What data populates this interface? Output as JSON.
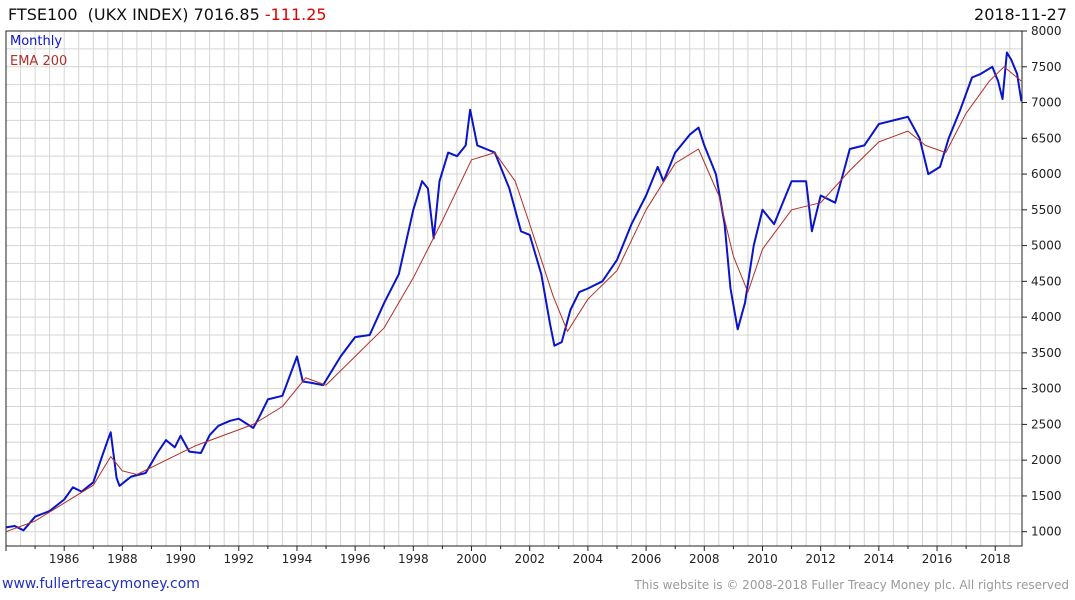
{
  "header": {
    "symbol": "FTSE100",
    "name": "(UKX INDEX)",
    "price": "7016.85",
    "change": "-111.25",
    "date": "2018-11-27"
  },
  "colors": {
    "monthly": "#0a14c8",
    "ema": "#b0302a",
    "grid": "#d4d4d4",
    "change_negative": "#e00000",
    "link": "#2030c0"
  },
  "footer": {
    "link": "www.fullertreacymoney.com",
    "copyright": "This website is © 2008-2018 Fuller Treacy Money plc. All rights reserved"
  },
  "chart_data": {
    "type": "line",
    "title": "FTSE100  (UKX INDEX)",
    "xlabel": "",
    "ylabel": "",
    "xlim": [
      1984.0,
      2018.92
    ],
    "ylim": [
      800,
      8000
    ],
    "y_axis_side": "right",
    "grid": true,
    "legend_position": "top-left",
    "x_ticks": [
      1986,
      1988,
      1990,
      1992,
      1994,
      1996,
      1998,
      2000,
      2002,
      2004,
      2006,
      2008,
      2010,
      2012,
      2014,
      2016,
      2018
    ],
    "y_ticks": [
      1000,
      1500,
      2000,
      2500,
      3000,
      3500,
      4000,
      4500,
      5000,
      5500,
      6000,
      6500,
      7000,
      7500,
      8000
    ],
    "series": [
      {
        "name": "Monthly",
        "color": "#0a14c8",
        "x": [
          1984.0,
          1984.3,
          1984.6,
          1985.0,
          1985.5,
          1986.0,
          1986.3,
          1986.6,
          1987.0,
          1987.3,
          1987.5,
          1987.6,
          1987.8,
          1987.9,
          1988.3,
          1988.8,
          1989.2,
          1989.5,
          1989.8,
          1990.0,
          1990.3,
          1990.7,
          1991.0,
          1991.3,
          1991.7,
          1992.0,
          1992.5,
          1992.7,
          1993.0,
          1993.5,
          1994.0,
          1994.2,
          1994.5,
          1994.9,
          1995.5,
          1996.0,
          1996.5,
          1997.0,
          1997.5,
          1998.0,
          1998.3,
          1998.5,
          1998.7,
          1998.9,
          1999.2,
          1999.5,
          1999.8,
          1999.95,
          2000.2,
          2000.5,
          2000.8,
          2001.0,
          2001.3,
          2001.7,
          2002.0,
          2002.4,
          2002.7,
          2002.85,
          2003.1,
          2003.4,
          2003.7,
          2004.0,
          2004.5,
          2005.0,
          2005.5,
          2006.0,
          2006.4,
          2006.6,
          2007.0,
          2007.5,
          2007.8,
          2008.0,
          2008.4,
          2008.7,
          2008.9,
          2009.15,
          2009.4,
          2009.7,
          2010.0,
          2010.4,
          2010.7,
          2011.0,
          2011.5,
          2011.7,
          2012.0,
          2012.5,
          2013.0,
          2013.5,
          2014.0,
          2014.5,
          2015.0,
          2015.4,
          2015.7,
          2016.1,
          2016.4,
          2016.8,
          2017.2,
          2017.5,
          2017.9,
          2018.1,
          2018.25,
          2018.4,
          2018.55,
          2018.75,
          2018.9
        ],
        "values": [
          1060,
          1080,
          1020,
          1210,
          1290,
          1450,
          1620,
          1560,
          1690,
          2050,
          2280,
          2390,
          1750,
          1640,
          1770,
          1820,
          2100,
          2280,
          2180,
          2340,
          2120,
          2100,
          2350,
          2480,
          2550,
          2580,
          2450,
          2600,
          2850,
          2900,
          3450,
          3100,
          3080,
          3050,
          3450,
          3720,
          3750,
          4200,
          4600,
          5500,
          5900,
          5800,
          5100,
          5900,
          6300,
          6250,
          6400,
          6900,
          6400,
          6350,
          6300,
          6100,
          5800,
          5200,
          5150,
          4600,
          3900,
          3600,
          3650,
          4100,
          4350,
          4400,
          4500,
          4800,
          5300,
          5700,
          6100,
          5900,
          6300,
          6550,
          6650,
          6400,
          6000,
          5300,
          4400,
          3830,
          4200,
          5000,
          5500,
          5300,
          5600,
          5900,
          5900,
          5200,
          5700,
          5600,
          6350,
          6400,
          6700,
          6750,
          6800,
          6500,
          6000,
          6100,
          6500,
          6900,
          7350,
          7400,
          7500,
          7300,
          7050,
          7700,
          7600,
          7400,
          7017
        ]
      },
      {
        "name": "EMA 200",
        "color": "#b0302a",
        "x": [
          1984.0,
          1985.0,
          1986.0,
          1987.0,
          1987.6,
          1988.0,
          1988.5,
          1989.5,
          1990.5,
          1991.5,
          1992.5,
          1993.5,
          1994.3,
          1995.0,
          1996.0,
          1997.0,
          1998.0,
          1999.0,
          2000.0,
          2000.8,
          2001.5,
          2002.0,
          2002.8,
          2003.3,
          2004.0,
          2005.0,
          2006.0,
          2007.0,
          2007.8,
          2008.5,
          2009.0,
          2009.5,
          2010.0,
          2011.0,
          2012.0,
          2013.0,
          2014.0,
          2015.0,
          2015.6,
          2016.3,
          2017.0,
          2017.8,
          2018.3,
          2018.9
        ],
        "values": [
          1000,
          1150,
          1400,
          1650,
          2050,
          1850,
          1800,
          2000,
          2200,
          2350,
          2500,
          2750,
          3150,
          3050,
          3450,
          3850,
          4550,
          5350,
          6200,
          6300,
          5900,
          5300,
          4300,
          3800,
          4250,
          4650,
          5500,
          6150,
          6350,
          5700,
          4850,
          4350,
          4950,
          5500,
          5600,
          6050,
          6450,
          6600,
          6400,
          6300,
          6850,
          7300,
          7500,
          7300
        ]
      }
    ]
  }
}
